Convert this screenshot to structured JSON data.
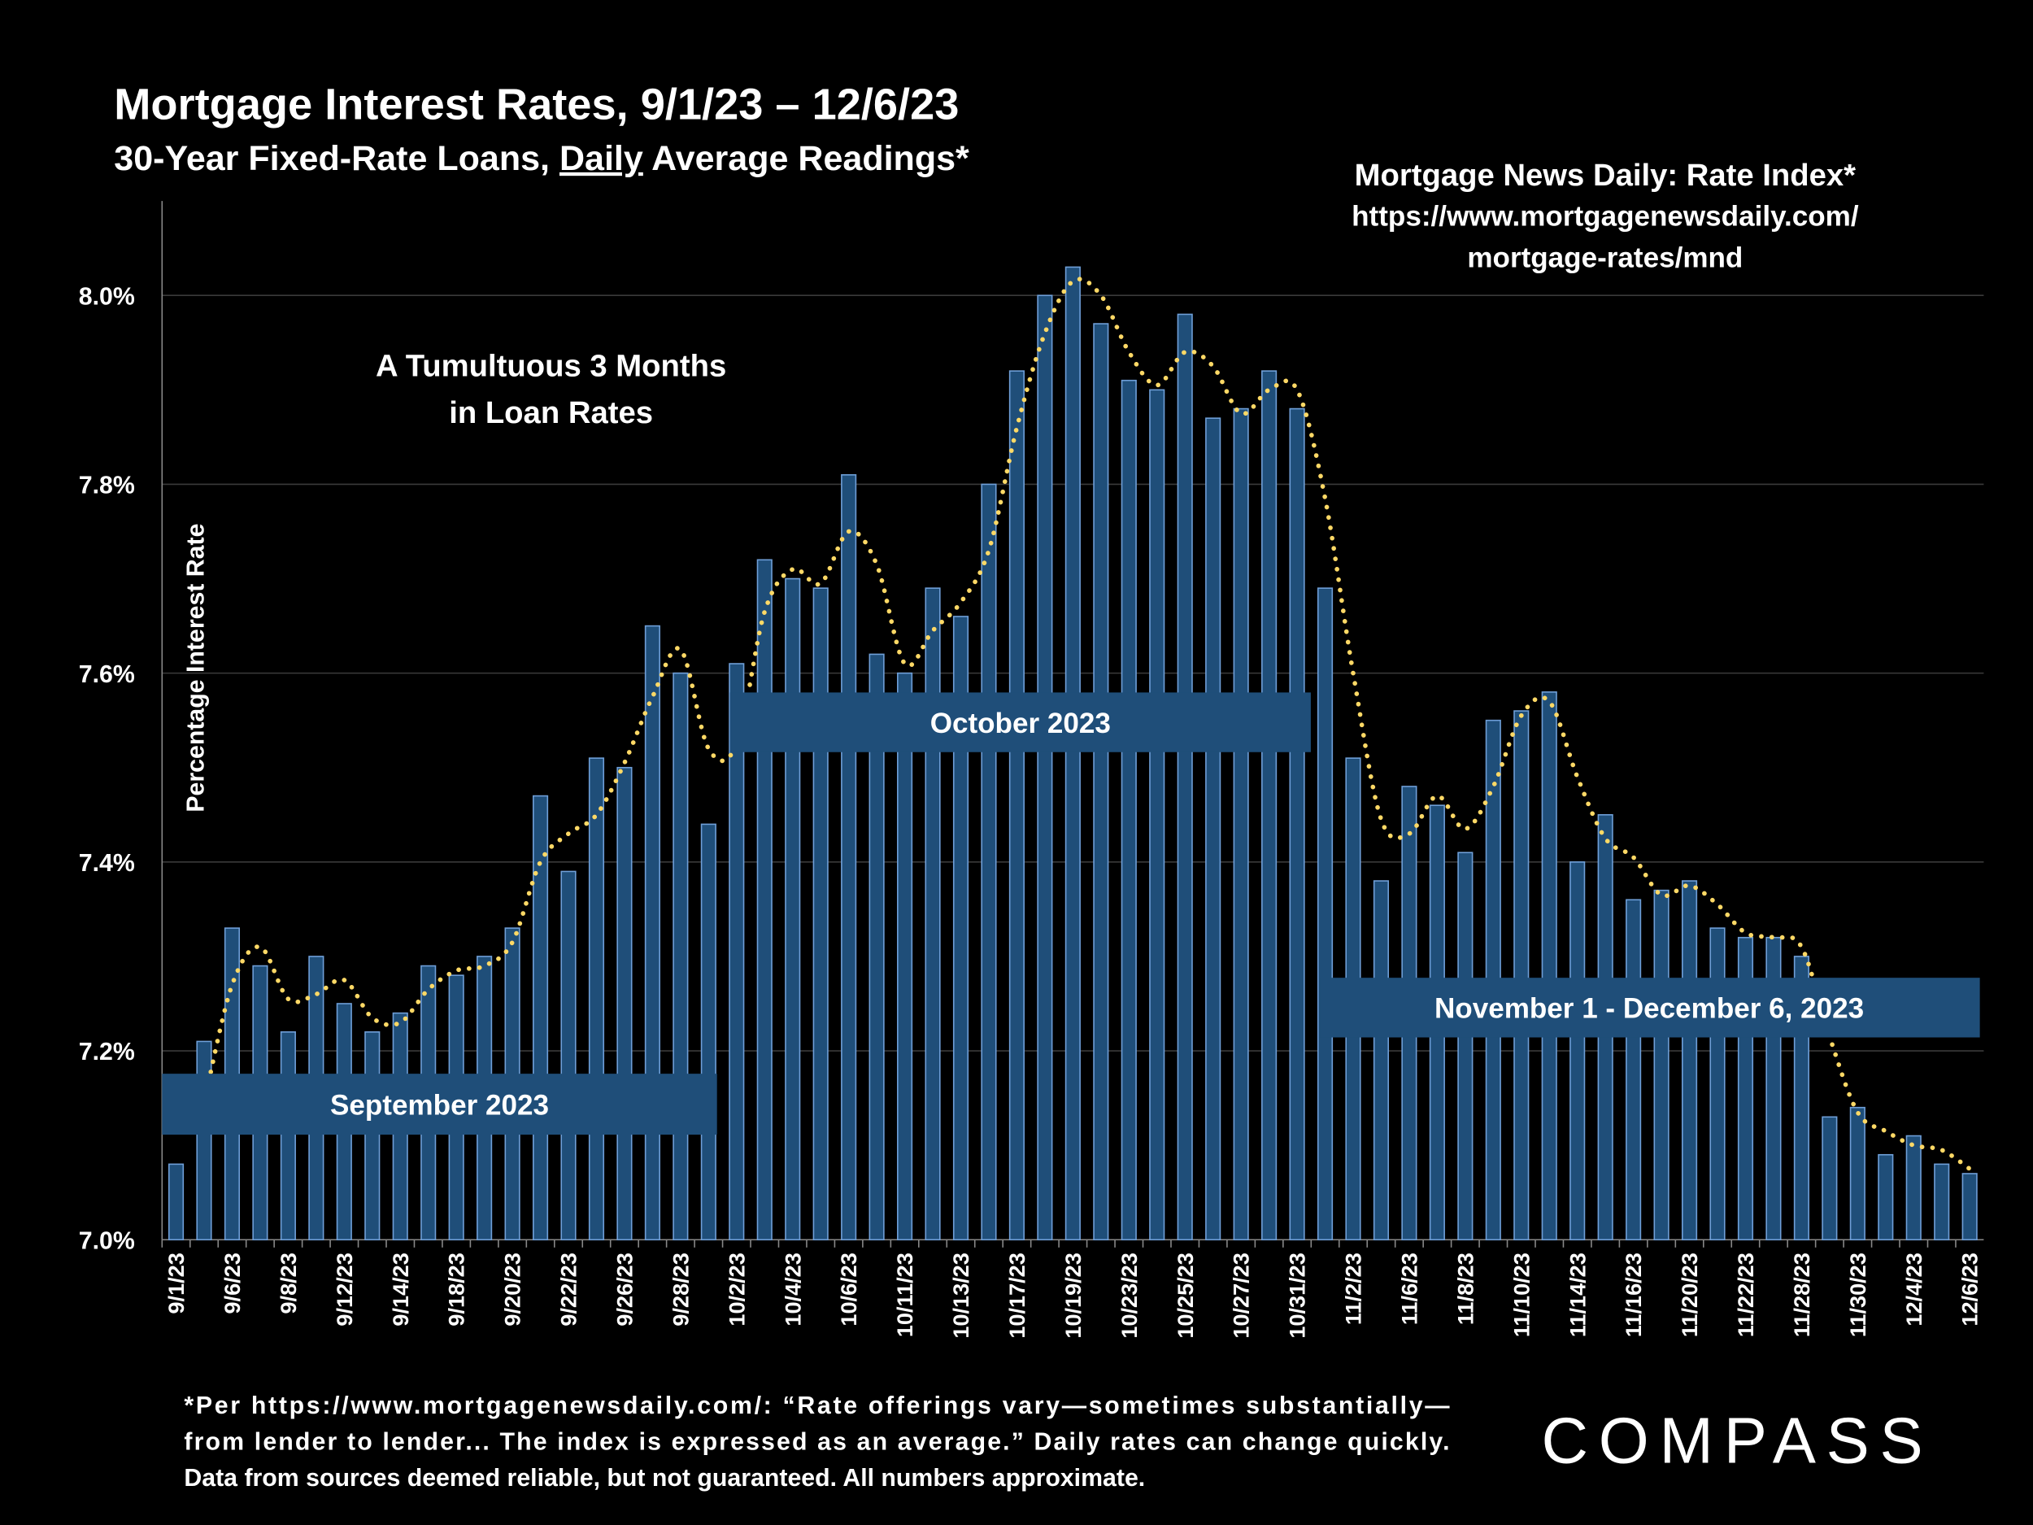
{
  "chart_data": {
    "type": "bar",
    "title": "Mortgage Interest Rates, 9/1/23 – 12/6/23",
    "subtitle": [
      "30-Year Fixed-Rate Loans, ",
      "Daily",
      " Average Readings*"
    ],
    "source": [
      "Mortgage News Daily:  Rate Index*",
      "https://www.mortgagenewsdaily.com/",
      "mortgage-rates/mnd"
    ],
    "annotation": [
      "A Tumultuous 3 Months",
      "in Loan Rates"
    ],
    "periods": [
      "September 2023",
      "October 2023",
      "November 1 - December 6, 2023"
    ],
    "y_label": "Percentage Interest  Rate",
    "footnote": [
      "*Per https://www.mortgagenewsdaily.com/: “Rate offerings vary—sometimes substantially—",
      "from lender to lender... The index is expressed as an average.” Daily rates can change quickly.",
      "Data from sources deemed reliable, but not guaranteed. All numbers approximate."
    ],
    "logo": "COMPASS",
    "categories": [
      "9/1/23",
      null,
      "9/6/23",
      null,
      "9/8/23",
      null,
      "9/12/23",
      null,
      "9/14/23",
      null,
      "9/18/23",
      null,
      "9/20/23",
      null,
      "9/22/23",
      null,
      "9/26/23",
      null,
      "9/28/23",
      null,
      "10/2/23",
      null,
      "10/4/23",
      null,
      "10/6/23",
      null,
      "10/11/23",
      null,
      "10/13/23",
      null,
      "10/17/23",
      null,
      "10/19/23",
      null,
      "10/23/23",
      null,
      "10/25/23",
      null,
      "10/27/23",
      null,
      "10/31/23",
      null,
      "11/2/23",
      null,
      "11/6/23",
      null,
      "11/8/23",
      null,
      "11/10/23",
      null,
      "11/14/23",
      null,
      "11/16/23",
      null,
      "11/20/23",
      null,
      "11/22/23",
      null,
      "11/28/23",
      null,
      "11/30/23",
      null,
      "12/4/23",
      null,
      "12/6/23"
    ],
    "values": [
      7.08,
      7.21,
      7.33,
      7.29,
      7.22,
      7.3,
      7.25,
      7.22,
      7.24,
      7.29,
      7.28,
      7.3,
      7.33,
      7.47,
      7.39,
      7.51,
      7.5,
      7.65,
      7.6,
      7.44,
      7.61,
      7.72,
      7.7,
      7.69,
      7.81,
      7.62,
      7.6,
      7.69,
      7.66,
      7.8,
      7.92,
      8.0,
      8.03,
      7.97,
      7.91,
      7.9,
      7.98,
      7.87,
      7.88,
      7.92,
      7.88,
      7.69,
      7.51,
      7.38,
      7.48,
      7.46,
      7.41,
      7.55,
      7.56,
      7.58,
      7.4,
      7.45,
      7.36,
      7.37,
      7.38,
      7.33,
      7.32,
      7.32,
      7.3,
      7.13,
      7.14,
      7.09,
      7.11,
      7.08,
      7.07
    ],
    "color": "#1f4e79",
    "ylim": [
      7.0,
      8.1
    ],
    "yticks": [
      {
        "value": 7.0,
        "label": "7.0%"
      },
      {
        "value": 7.2,
        "label": "7.2%"
      },
      {
        "value": 7.4,
        "label": "7.4%"
      },
      {
        "value": 7.6,
        "label": "7.6%"
      },
      {
        "value": 7.8,
        "label": "7.8%"
      },
      {
        "value": 8.0,
        "label": "8.0%"
      }
    ],
    "grid": true
  }
}
